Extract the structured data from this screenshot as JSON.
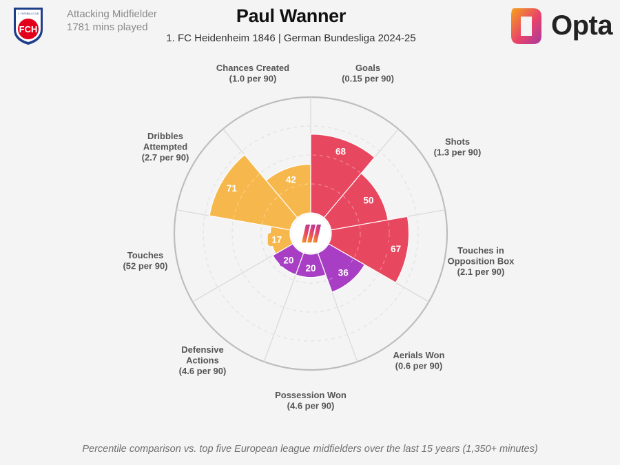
{
  "header": {
    "title": "Paul Wanner",
    "subtitle": "1. FC Heidenheim 1846 | German Bundesliga 2024-25",
    "position": "Attacking Midfielder",
    "minutes": "1781 mins played"
  },
  "club_crest": {
    "text": "FCH",
    "top_text": "1. FUSSBALLCLUB",
    "colors": [
      "#e2001a",
      "#1f3e8a"
    ]
  },
  "brand": {
    "name": "Opta",
    "gradient": [
      "#f5a21b",
      "#e8436a",
      "#a73aa0"
    ]
  },
  "footnote": "Percentile comparison vs. top five European league midfielders over the last 15 years (1,350+ minutes)",
  "chart_data": {
    "type": "polar-bar",
    "scale_max": 100,
    "categories": [
      {
        "name": "Goals",
        "rate": "(0.15 per 90)",
        "value": 68,
        "group": "attacking"
      },
      {
        "name": "Shots",
        "rate": "(1.3 per 90)",
        "value": 50,
        "group": "attacking"
      },
      {
        "name": "Touches in Opposition Box",
        "rate": "(2.1 per 90)",
        "value": 67,
        "group": "attacking"
      },
      {
        "name": "Aerials Won",
        "rate": "(0.6 per 90)",
        "value": 36,
        "group": "defending"
      },
      {
        "name": "Possession Won",
        "rate": "(4.6 per 90)",
        "value": 20,
        "group": "defending"
      },
      {
        "name": "Defensive Actions",
        "rate": "(4.6 per 90)",
        "value": 20,
        "group": "defending"
      },
      {
        "name": "Touches",
        "rate": "(52 per 90)",
        "value": 17,
        "group": "possession"
      },
      {
        "name": "Dribbles Attempted",
        "rate": "(2.7 per 90)",
        "value": 71,
        "group": "possession"
      },
      {
        "name": "Chances Created",
        "rate": "(1.0 per 90)",
        "value": 42,
        "group": "possession"
      }
    ],
    "group_colors": {
      "attacking": "#e8485f",
      "defending": "#a83ec4",
      "possession": "#f6b84c"
    },
    "grid": true
  }
}
